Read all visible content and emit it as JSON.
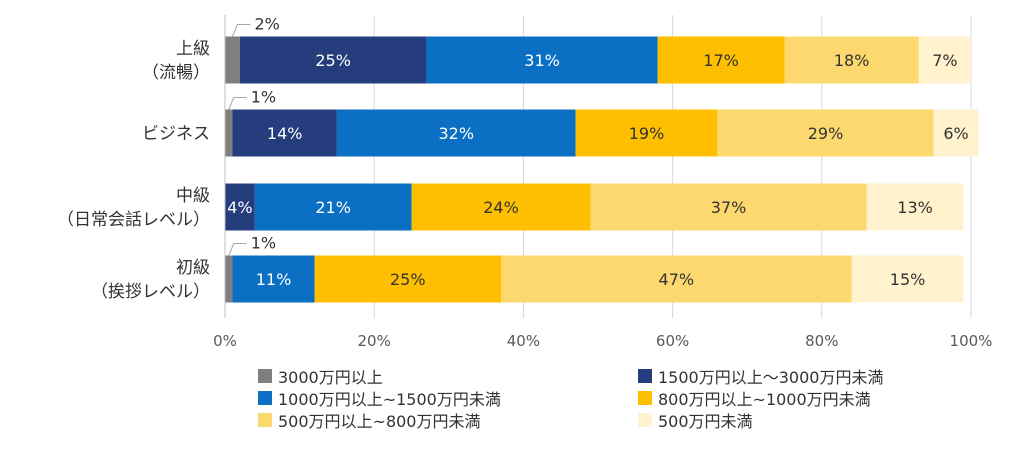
{
  "chart_data": {
    "type": "bar",
    "orientation": "horizontal",
    "stacked": true,
    "categories": [
      "上級\n（流暢）",
      "ビジネス",
      "中級\n（日常会話レベル）",
      "初級\n（挨拶レベル）"
    ],
    "series": [
      {
        "name": "3000万円以上",
        "values": [
          2,
          1,
          0,
          1
        ],
        "color": "#7f7f7f"
      },
      {
        "name": "1500万円以上～3000万円未満",
        "values": [
          25,
          14,
          4,
          0
        ],
        "color": "#253d7c"
      },
      {
        "name": "1000万円以上~1500万円未満",
        "values": [
          31,
          32,
          21,
          11
        ],
        "color": "#0b6fc3"
      },
      {
        "name": "800万円以上~1000万円未満",
        "values": [
          17,
          19,
          24,
          25
        ],
        "color": "#fdbf00"
      },
      {
        "name": "500万円以上~800万円未満",
        "values": [
          18,
          29,
          37,
          47
        ],
        "color": "#fdd86e"
      },
      {
        "name": "500万円未満",
        "values": [
          7,
          6,
          13,
          15
        ],
        "color": "#fff2cc"
      }
    ],
    "segment_labels": [
      [
        "2%",
        "25%",
        "31%",
        "17%",
        "18%",
        "7%"
      ],
      [
        "1%",
        "14%",
        "32%",
        "19%",
        "29%",
        "6%"
      ],
      [
        "",
        "4%",
        "21%",
        "24%",
        "37%",
        "13%"
      ],
      [
        "1%",
        "",
        "11%",
        "25%",
        "47%",
        "15%"
      ]
    ],
    "xlim": [
      0,
      100
    ],
    "x_ticks": [
      "0%",
      "20%",
      "40%",
      "60%",
      "80%",
      "100%"
    ],
    "grid": true,
    "legend_position": "bottom",
    "title": "",
    "xlabel": "",
    "ylabel": ""
  }
}
